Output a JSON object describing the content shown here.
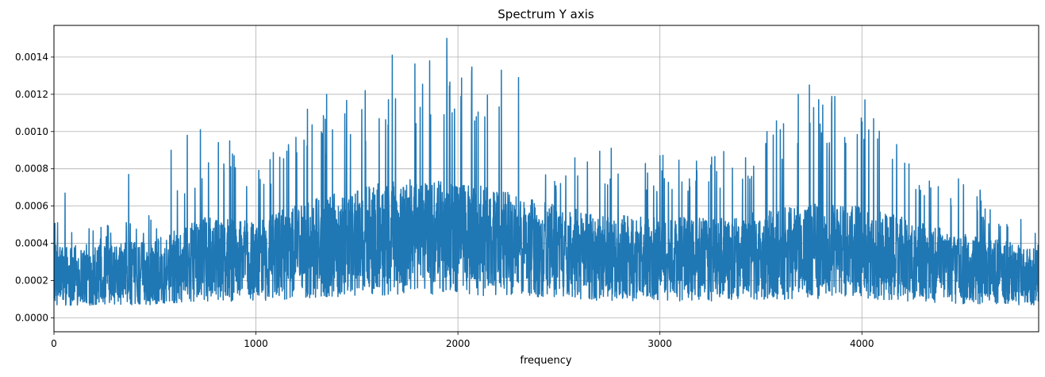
{
  "chart_data": {
    "type": "line",
    "title": "Spectrum Y axis",
    "xlabel": "frequency",
    "ylabel": "",
    "xlim": [
      0,
      4875
    ],
    "ylim": [
      -7.5e-05,
      0.00157
    ],
    "x_ticks": [
      0,
      1000,
      2000,
      3000,
      4000
    ],
    "x_tick_labels": [
      "0",
      "1000",
      "2000",
      "3000",
      "4000"
    ],
    "y_ticks": [
      0,
      0.0002,
      0.0004,
      0.0006,
      0.0008,
      0.001,
      0.0012,
      0.0014
    ],
    "y_tick_labels": [
      "0.0000",
      "0.0002",
      "0.0004",
      "0.0006",
      "0.0008",
      "0.0010",
      "0.0012",
      "0.0014"
    ],
    "grid": true,
    "line_color": "#1f77b4",
    "x_step": 1,
    "x_points": 4875,
    "envelope": {
      "x": [
        0,
        250,
        500,
        750,
        1000,
        1250,
        1500,
        1750,
        2000,
        2250,
        2500,
        2750,
        3000,
        3250,
        3500,
        3750,
        4000,
        4250,
        4500,
        4750,
        4875
      ],
      "mean": [
        0.00027,
        0.00026,
        0.00028,
        0.00036,
        0.00035,
        0.00042,
        0.00047,
        0.0005,
        0.00049,
        0.00045,
        0.0004,
        0.00037,
        0.00036,
        0.00036,
        0.00038,
        0.00041,
        0.0004,
        0.00035,
        0.0003,
        0.00027,
        0.00026
      ],
      "max": [
        0.00055,
        0.00054,
        0.0006,
        0.00102,
        0.00086,
        0.00106,
        0.00128,
        0.00141,
        0.00151,
        0.00134,
        0.00086,
        0.00096,
        0.00092,
        0.00093,
        0.00106,
        0.00125,
        0.00121,
        0.00085,
        0.00077,
        0.0006,
        0.00045
      ]
    },
    "peaks": [
      {
        "x": 1945,
        "y": 0.0015
      },
      {
        "x": 1675,
        "y": 0.00141
      },
      {
        "x": 1860,
        "y": 0.00138
      },
      {
        "x": 2215,
        "y": 0.00133
      },
      {
        "x": 2300,
        "y": 0.00129
      },
      {
        "x": 3740,
        "y": 0.00125
      },
      {
        "x": 1350,
        "y": 0.0012
      },
      {
        "x": 3685,
        "y": 0.0012
      },
      {
        "x": 4015,
        "y": 0.00117
      },
      {
        "x": 3850,
        "y": 0.00115
      },
      {
        "x": 1255,
        "y": 0.00112
      },
      {
        "x": 1610,
        "y": 0.00107
      },
      {
        "x": 3530,
        "y": 0.001
      },
      {
        "x": 725,
        "y": 0.00101
      },
      {
        "x": 660,
        "y": 0.00098
      },
      {
        "x": 870,
        "y": 0.00095
      },
      {
        "x": 580,
        "y": 0.0009
      },
      {
        "x": 1070,
        "y": 0.00085
      },
      {
        "x": 370,
        "y": 0.00077
      },
      {
        "x": 4570,
        "y": 0.00065
      },
      {
        "x": 55,
        "y": 0.00067
      }
    ]
  }
}
